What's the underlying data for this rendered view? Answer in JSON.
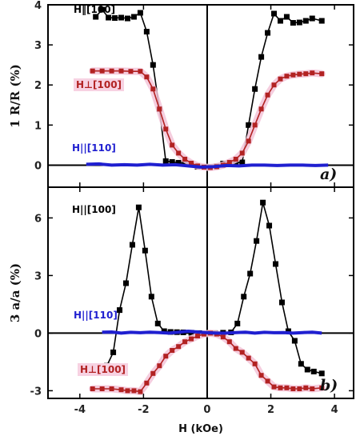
{
  "chart_data": [
    {
      "type": "line",
      "panel_label": "a)",
      "ylabel": "1 R/R (%)",
      "ylim": [
        -0.55,
        4.0
      ],
      "yticks": [
        0,
        1,
        2,
        3,
        4
      ],
      "xlim": [
        -5,
        4.6
      ],
      "grid": false,
      "series": [
        {
          "name": "H‖[100]",
          "color": "#000000",
          "x": [
            -3.5,
            -3.3,
            -3.1,
            -2.9,
            -2.7,
            -2.5,
            -2.3,
            -2.1,
            -1.9,
            -1.7,
            -1.5,
            -1.3,
            -1.1,
            -0.9,
            -0.7,
            -0.5,
            -0.3,
            0.3,
            0.5,
            0.7,
            0.9,
            1.1,
            1.3,
            1.5,
            1.7,
            1.9,
            2.1,
            2.3,
            2.5,
            2.7,
            2.9,
            3.1,
            3.3,
            3.6
          ],
          "y": [
            3.7,
            3.88,
            3.68,
            3.67,
            3.68,
            3.66,
            3.7,
            3.8,
            3.33,
            2.5,
            1.4,
            0.1,
            0.08,
            0.06,
            0.05,
            0.02,
            -0.04,
            -0.03,
            0.04,
            0.05,
            0.06,
            0.07,
            1.0,
            1.9,
            2.7,
            3.3,
            3.78,
            3.6,
            3.7,
            3.55,
            3.56,
            3.6,
            3.66,
            3.6
          ]
        },
        {
          "name": "H⊥[100]",
          "color": "#b22222",
          "x": [
            -3.6,
            -3.3,
            -3.0,
            -2.7,
            -2.4,
            -2.1,
            -1.9,
            -1.7,
            -1.5,
            -1.3,
            -1.1,
            -0.9,
            -0.7,
            -0.5,
            -0.3,
            -0.1,
            0.1,
            0.3,
            0.5,
            0.7,
            0.9,
            1.1,
            1.3,
            1.5,
            1.7,
            1.9,
            2.1,
            2.3,
            2.5,
            2.7,
            2.9,
            3.1,
            3.3,
            3.6
          ],
          "y": [
            2.35,
            2.35,
            2.35,
            2.35,
            2.34,
            2.34,
            2.2,
            1.9,
            1.4,
            0.9,
            0.5,
            0.3,
            0.15,
            0.05,
            -0.02,
            -0.05,
            -0.06,
            -0.04,
            0.0,
            0.07,
            0.15,
            0.3,
            0.6,
            1.0,
            1.4,
            1.75,
            2.0,
            2.15,
            2.22,
            2.25,
            2.27,
            2.28,
            2.3,
            2.28
          ]
        },
        {
          "name": "H||[110]",
          "color": "#1f1fd0",
          "x": [
            -3.8,
            -3.4,
            -3.0,
            -2.6,
            -2.2,
            -1.8,
            -1.4,
            -1.0,
            -0.6,
            -0.2,
            0.2,
            0.6,
            1.0,
            1.4,
            1.8,
            2.2,
            2.6,
            3.0,
            3.4,
            3.8
          ],
          "y": [
            0.02,
            0.03,
            0.0,
            0.01,
            0.0,
            0.02,
            0.0,
            0.01,
            -0.02,
            -0.05,
            -0.04,
            -0.01,
            -0.02,
            0.0,
            0.0,
            -0.01,
            0.0,
            0.0,
            -0.01,
            0.0
          ]
        }
      ]
    },
    {
      "type": "line",
      "panel_label": "b)",
      "ylabel": "3 a/a (%)",
      "xlabel": "H (kOe)",
      "ylim": [
        -3.4,
        7.6
      ],
      "yticks": [
        -3,
        0,
        3,
        6
      ],
      "yticklabels": [
        "-3",
        "0",
        "3",
        "6"
      ],
      "xlim": [
        -5,
        4.6
      ],
      "xticks": [
        -4,
        -2,
        0,
        2,
        4
      ],
      "xticklabels": [
        "-4",
        "-2",
        "0",
        "2",
        "4"
      ],
      "grid": false,
      "series": [
        {
          "name": "H||[100]",
          "color": "#000000",
          "x": [
            -3.55,
            -3.35,
            -3.15,
            -2.95,
            -2.75,
            -2.55,
            -2.35,
            -2.15,
            -1.95,
            -1.75,
            -1.55,
            -1.35,
            -1.15,
            -0.95,
            -0.75,
            -0.5,
            -0.25,
            0.25,
            0.5,
            0.75,
            0.95,
            1.15,
            1.35,
            1.55,
            1.75,
            1.95,
            2.15,
            2.35,
            2.55,
            2.75,
            2.95,
            3.15,
            3.35,
            3.6
          ],
          "y": [
            -1.8,
            -2.0,
            -1.7,
            -1.0,
            1.2,
            2.6,
            4.6,
            6.55,
            4.3,
            1.9,
            0.5,
            0.1,
            0.06,
            0.05,
            0.04,
            0.02,
            0.0,
            0.0,
            0.02,
            0.04,
            0.5,
            1.9,
            3.1,
            4.8,
            6.8,
            5.6,
            3.6,
            1.6,
            0.1,
            -0.4,
            -1.6,
            -1.9,
            -2.0,
            -2.1
          ]
        },
        {
          "name": "H⊥[100]",
          "color": "#b22222",
          "x": [
            -3.6,
            -3.3,
            -3.0,
            -2.7,
            -2.5,
            -2.3,
            -2.1,
            -1.9,
            -1.7,
            -1.5,
            -1.3,
            -1.1,
            -0.9,
            -0.7,
            -0.5,
            -0.3,
            -0.1,
            0.1,
            0.3,
            0.5,
            0.7,
            0.9,
            1.1,
            1.3,
            1.5,
            1.7,
            1.9,
            2.1,
            2.3,
            2.5,
            2.7,
            2.9,
            3.1,
            3.3,
            3.6
          ],
          "y": [
            -2.9,
            -2.9,
            -2.9,
            -2.95,
            -3.0,
            -3.0,
            -3.05,
            -2.6,
            -2.1,
            -1.7,
            -1.2,
            -0.9,
            -0.7,
            -0.45,
            -0.3,
            -0.15,
            -0.05,
            0.0,
            -0.05,
            -0.2,
            -0.45,
            -0.8,
            -1.0,
            -1.3,
            -1.6,
            -2.2,
            -2.5,
            -2.8,
            -2.85,
            -2.85,
            -2.9,
            -2.9,
            -2.85,
            -2.9,
            -2.85
          ]
        },
        {
          "name": "H||[110]",
          "color": "#1f1fd0",
          "x": [
            -3.3,
            -3.0,
            -2.7,
            -2.4,
            -2.1,
            -1.8,
            -1.5,
            -1.2,
            -0.9,
            -0.6,
            -0.3,
            0.0,
            0.3,
            0.6,
            0.9,
            1.2,
            1.5,
            1.8,
            2.1,
            2.4,
            2.7,
            3.0,
            3.3,
            3.6
          ],
          "y": [
            0.05,
            0.06,
            0.0,
            0.04,
            0.02,
            0.05,
            0.03,
            0.0,
            0.05,
            0.1,
            0.06,
            0.02,
            0.0,
            0.0,
            0.03,
            0.05,
            0.0,
            0.04,
            0.02,
            0.03,
            0.0,
            0.03,
            0.05,
            0.0
          ]
        }
      ]
    }
  ]
}
